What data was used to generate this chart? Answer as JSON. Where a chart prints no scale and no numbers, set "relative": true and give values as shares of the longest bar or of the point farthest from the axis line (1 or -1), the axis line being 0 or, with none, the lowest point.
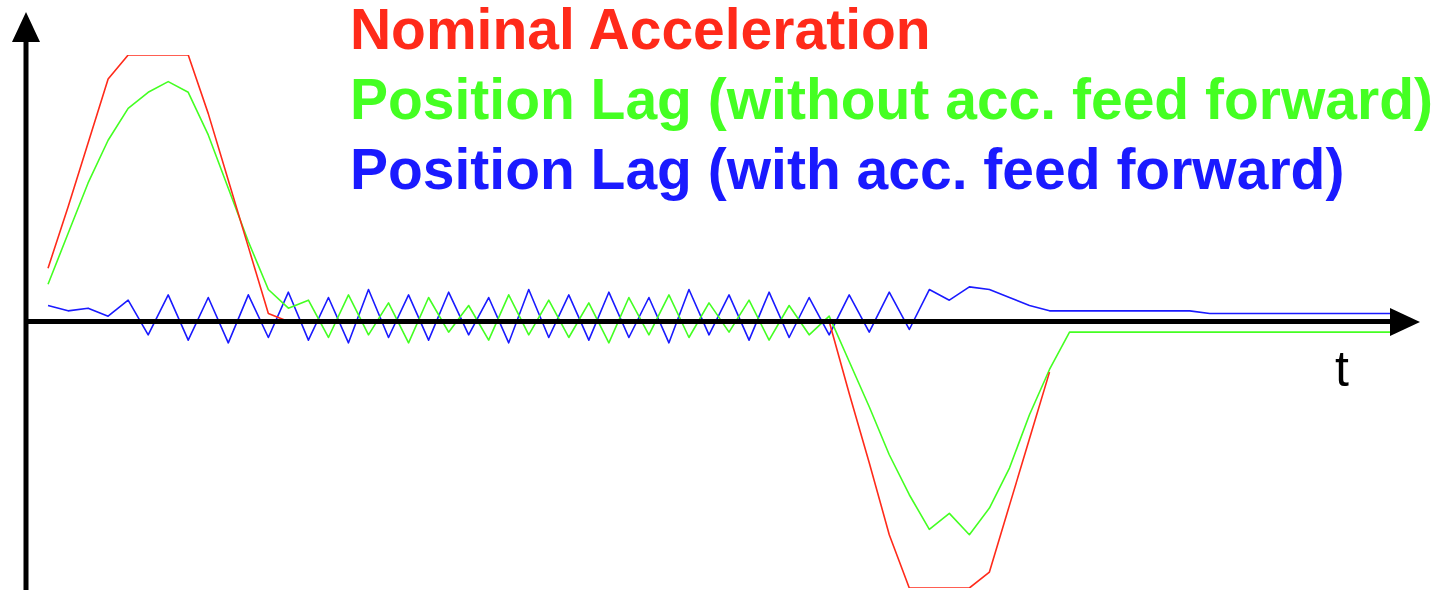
{
  "chart_data": {
    "type": "line",
    "relative": true,
    "xlabel": "t",
    "legend": "top right",
    "marker": "none",
    "categories": [
      null,
      null,
      null,
      null,
      null,
      null,
      null,
      null,
      null,
      null,
      null,
      null,
      null,
      null,
      null,
      null,
      null,
      null,
      null,
      null,
      null,
      null,
      null,
      null,
      null,
      null,
      null,
      null,
      null,
      null,
      null,
      null,
      null,
      null,
      null,
      null,
      null,
      null,
      null,
      null,
      null,
      null,
      null,
      null,
      null,
      null,
      null,
      null,
      null,
      null,
      null,
      null,
      null,
      null,
      null,
      null,
      null,
      null,
      null,
      null,
      null,
      null,
      null,
      null,
      null,
      null,
      null,
      null,
      null
    ],
    "series": [
      {
        "name": "Nominal Acceleration",
        "color": "#ff2a1a",
        "values": [
          null,
          0.2,
          0.43,
          0.67,
          0.91,
          1,
          1,
          1,
          1,
          0.78,
          0.53,
          0.28,
          0.03,
          0,
          null,
          null,
          null,
          null,
          null,
          null,
          null,
          null,
          null,
          null,
          null,
          null,
          null,
          null,
          null,
          null,
          null,
          null,
          null,
          null,
          null,
          null,
          null,
          null,
          null,
          null,
          0,
          -0.27,
          -0.53,
          -0.8,
          -1,
          -1,
          -1,
          -1,
          -0.94,
          -0.69,
          -0.44,
          -0.19,
          null,
          null,
          null,
          null,
          null,
          null,
          null,
          null,
          null,
          null,
          null,
          null,
          null,
          null,
          null,
          null,
          null
        ]
      },
      {
        "name": "Position Lag (without acc. feed forward)",
        "color": "#44ff22",
        "values": [
          null,
          0.14,
          0.33,
          0.52,
          0.68,
          0.8,
          0.86,
          0.9,
          0.86,
          0.7,
          0.5,
          0.3,
          0.12,
          0.05,
          0.08,
          -0.06,
          0.1,
          -0.05,
          0.07,
          -0.08,
          0.09,
          -0.04,
          0.06,
          -0.07,
          0.1,
          -0.05,
          0.08,
          -0.06,
          0.07,
          -0.08,
          0.09,
          -0.05,
          0.1,
          -0.06,
          0.07,
          -0.04,
          0.08,
          -0.07,
          0.06,
          -0.05,
          0.02,
          -0.15,
          -0.32,
          -0.5,
          -0.65,
          -0.78,
          -0.72,
          -0.8,
          -0.7,
          -0.55,
          -0.35,
          -0.18,
          -0.04,
          -0.04,
          -0.04,
          -0.04,
          -0.04,
          -0.04,
          -0.04,
          -0.04,
          -0.04,
          -0.04,
          -0.04,
          -0.04,
          -0.04,
          -0.04,
          -0.04,
          -0.04,
          -0.04
        ]
      },
      {
        "name": "Position Lag (with acc. feed forward)",
        "color": "#1a1aff",
        "values": [
          null,
          0.06,
          0.04,
          0.05,
          0.02,
          0.08,
          -0.05,
          0.1,
          -0.07,
          0.09,
          -0.08,
          0.1,
          -0.06,
          0.11,
          -0.07,
          0.09,
          -0.08,
          0.12,
          -0.06,
          0.1,
          -0.07,
          0.11,
          -0.05,
          0.09,
          -0.08,
          0.12,
          -0.06,
          0.1,
          -0.07,
          0.11,
          -0.06,
          0.09,
          -0.08,
          0.12,
          -0.05,
          0.1,
          -0.07,
          0.11,
          -0.06,
          0.09,
          -0.05,
          0.1,
          -0.04,
          0.11,
          -0.03,
          0.12,
          0.08,
          0.13,
          0.12,
          0.09,
          0.06,
          0.04,
          0.04,
          0.04,
          0.04,
          0.04,
          0.04,
          0.04,
          0.04,
          0.03,
          0.03,
          0.03,
          0.03,
          0.03,
          0.03,
          0.03,
          0.03,
          0.03,
          0.03
        ]
      }
    ]
  }
}
